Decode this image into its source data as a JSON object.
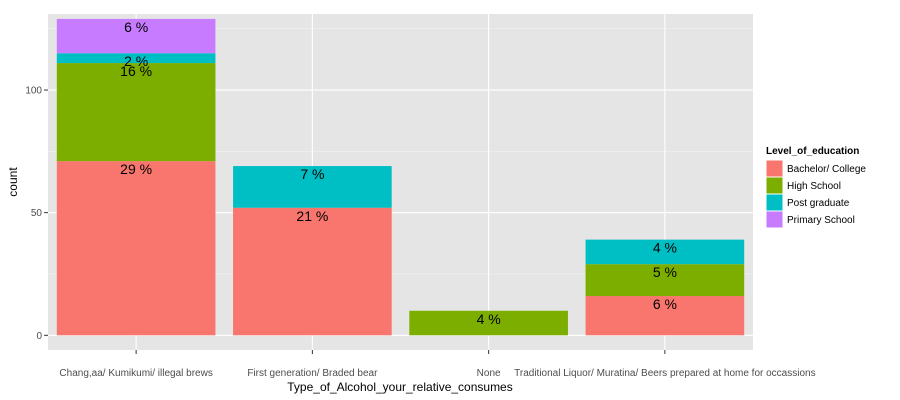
{
  "chart_data": {
    "type": "bar",
    "stacked": true,
    "xlabel": "Type_of_Alcohol_your_relative_consumes",
    "ylabel": "count",
    "ylim": [
      -6,
      131
    ],
    "yticks": [
      0,
      50,
      100
    ],
    "grid": true,
    "legend_position": "right",
    "legend_title": "Level_of_education",
    "categories": [
      "Chang,aa/ Kumikumi/ illegal brews",
      "First generation/ Braded bear",
      "None",
      "Traditional Liquor/ Muratina/ Beers prepared at home for occassions"
    ],
    "series": [
      {
        "name": "Bachelor/ College",
        "color": "#F8766D",
        "values": [
          71,
          52,
          0,
          16
        ],
        "labels": [
          "29 %",
          "21 %",
          "",
          "6 %"
        ]
      },
      {
        "name": "High School",
        "color": "#7CAE00",
        "values": [
          40,
          0,
          10,
          13
        ],
        "labels": [
          "16 %",
          "",
          "4 %",
          "5 %"
        ]
      },
      {
        "name": "Post graduate",
        "color": "#00BFC4",
        "values": [
          4,
          17,
          0,
          10
        ],
        "labels": [
          "2 %",
          "7 %",
          "",
          "4 %"
        ]
      },
      {
        "name": "Primary School",
        "color": "#C77CFF",
        "values": [
          14,
          0,
          0,
          0
        ],
        "labels": [
          "6 %",
          "",
          "",
          ""
        ]
      }
    ]
  }
}
